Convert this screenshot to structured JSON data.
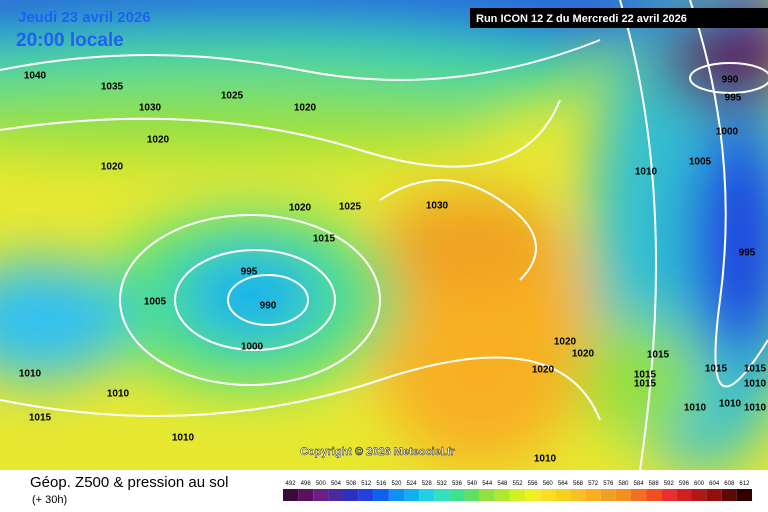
{
  "header": {
    "date": "Jeudi 23 avril 2026",
    "time": "20:00 locale",
    "run": "Run ICON 12 Z du Mercredi 22 avril 2026"
  },
  "copyright": "Copyright © 2026 Meteociel.fr",
  "footer": {
    "title": "Géop. Z500 & pression au sol",
    "lead": "(+ 30h)"
  },
  "isobar_labels": [
    "1040",
    "1035",
    "1030",
    "1025",
    "1020",
    "1020",
    "1020",
    "1020",
    "1025",
    "1015",
    "1030",
    "1005",
    "995",
    "990",
    "1000",
    "1010",
    "1010",
    "1015",
    "1010",
    "1020",
    "1020",
    "1020",
    "1010",
    "1015",
    "1015",
    "1015",
    "1015",
    "1015",
    "1010",
    "1010",
    "1010",
    "1010",
    "1010",
    "1005",
    "1000",
    "995",
    "990",
    "995"
  ],
  "scale": {
    "labels": [
      492,
      496,
      500,
      504,
      508,
      512,
      516,
      520,
      524,
      528,
      532,
      536,
      540,
      544,
      548,
      552,
      556,
      560,
      564,
      568,
      572,
      576,
      580,
      584,
      588,
      592,
      596,
      600,
      604,
      608,
      612
    ],
    "colors": [
      "#3a0a3a",
      "#5a1060",
      "#6a2080",
      "#4a2aa0",
      "#3030c0",
      "#2040e0",
      "#1060f0",
      "#1090f0",
      "#10b0f0",
      "#20d0e0",
      "#30e0c0",
      "#40e090",
      "#60e060",
      "#90e040",
      "#b0e830",
      "#d0f020",
      "#f0f020",
      "#f8e020",
      "#f8d020",
      "#f8c020",
      "#f8b020",
      "#f0a020",
      "#f09020",
      "#f07020",
      "#f05020",
      "#e83030",
      "#d02020",
      "#b01818",
      "#901010",
      "#600808",
      "#300000"
    ]
  }
}
